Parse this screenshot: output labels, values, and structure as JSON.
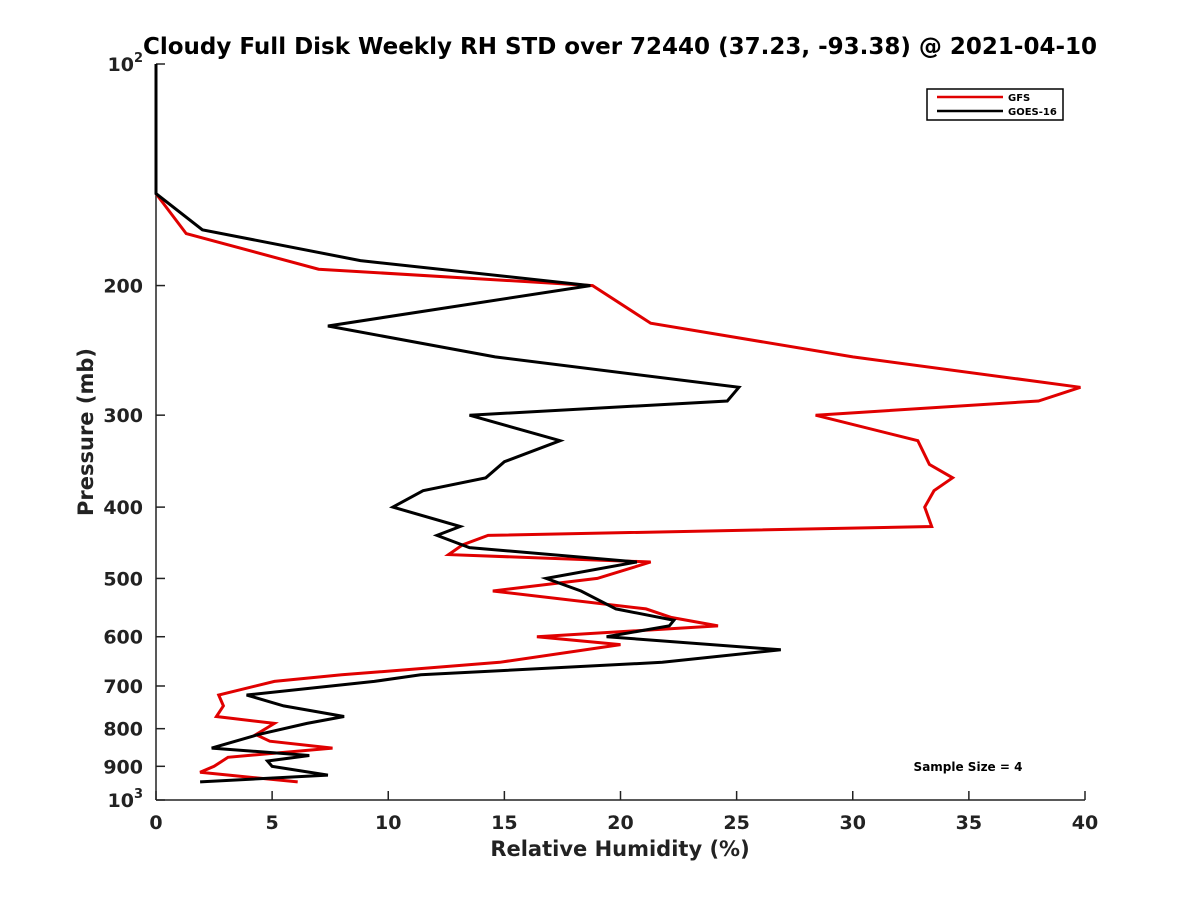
{
  "chart_data": {
    "type": "line",
    "title": "Cloudy Full Disk Weekly RH STD over 72440 (37.23, -93.38) @ 2021-04-10",
    "xlabel": "Relative Humidity (%)",
    "ylabel": "Pressure (mb)",
    "xlim": [
      0,
      40
    ],
    "ylim": [
      100,
      1000
    ],
    "y_scale": "log",
    "y_reversed": true,
    "grid": false,
    "legend_position": "top-right",
    "x_ticks": [
      {
        "value": 0,
        "label": "0"
      },
      {
        "value": 5,
        "label": "5"
      },
      {
        "value": 10,
        "label": "10"
      },
      {
        "value": 15,
        "label": "15"
      },
      {
        "value": 20,
        "label": "20"
      },
      {
        "value": 25,
        "label": "25"
      },
      {
        "value": 30,
        "label": "30"
      },
      {
        "value": 35,
        "label": "35"
      },
      {
        "value": 40,
        "label": "40"
      }
    ],
    "y_ticks": [
      {
        "value": 100,
        "base": "10",
        "exp": "2",
        "label": ""
      },
      {
        "value": 200,
        "label": "200"
      },
      {
        "value": 300,
        "label": "300"
      },
      {
        "value": 400,
        "label": "400"
      },
      {
        "value": 500,
        "label": "500"
      },
      {
        "value": 600,
        "label": "600"
      },
      {
        "value": 700,
        "label": "700"
      },
      {
        "value": 800,
        "label": "800"
      },
      {
        "value": 900,
        "label": "900"
      },
      {
        "value": 1000,
        "base": "10",
        "exp": "3",
        "label": ""
      }
    ],
    "annotation": "Sample Size = 4",
    "series": [
      {
        "name": "GFS",
        "color": "#e00000",
        "points": [
          [
            0,
            100
          ],
          [
            0,
            125
          ],
          [
            0,
            150
          ],
          [
            1.3,
            170
          ],
          [
            7,
            190
          ],
          [
            18.8,
            200
          ],
          [
            21.3,
            225
          ],
          [
            30,
            250
          ],
          [
            39.8,
            275
          ],
          [
            38,
            287
          ],
          [
            28.4,
            300
          ],
          [
            32.8,
            325
          ],
          [
            33.3,
            350
          ],
          [
            34.3,
            365
          ],
          [
            33.5,
            380
          ],
          [
            33.1,
            400
          ],
          [
            33.4,
            425
          ],
          [
            14.3,
            437
          ],
          [
            13.2,
            450
          ],
          [
            12.6,
            464
          ],
          [
            21.3,
            475
          ],
          [
            19,
            500
          ],
          [
            14.5,
            520
          ],
          [
            21.1,
            550
          ],
          [
            22.2,
            565
          ],
          [
            24.2,
            580
          ],
          [
            16.4,
            600
          ],
          [
            20,
            615
          ],
          [
            14.8,
            650
          ],
          [
            8,
            676
          ],
          [
            5.1,
            690
          ],
          [
            2.7,
            720
          ],
          [
            2.9,
            745
          ],
          [
            2.6,
            770
          ],
          [
            5.1,
            787
          ],
          [
            4.3,
            815
          ],
          [
            4.9,
            832
          ],
          [
            7.6,
            850
          ],
          [
            3.1,
            875
          ],
          [
            2.5,
            900
          ],
          [
            1.9,
            917
          ],
          [
            6.1,
            945
          ]
        ]
      },
      {
        "name": "GOES-16",
        "color": "#000000",
        "points": [
          [
            0,
            100
          ],
          [
            0,
            125
          ],
          [
            0,
            150
          ],
          [
            2,
            168
          ],
          [
            8.8,
            185
          ],
          [
            18.7,
            200
          ],
          [
            7.4,
            227
          ],
          [
            14.6,
            250
          ],
          [
            25.1,
            275
          ],
          [
            24.6,
            287
          ],
          [
            13.5,
            300
          ],
          [
            17.4,
            325
          ],
          [
            15,
            347
          ],
          [
            14.2,
            365
          ],
          [
            11.5,
            380
          ],
          [
            10.2,
            400
          ],
          [
            13.1,
            425
          ],
          [
            12.1,
            437
          ],
          [
            13.5,
            454
          ],
          [
            20.7,
            475
          ],
          [
            16.8,
            500
          ],
          [
            18.3,
            520
          ],
          [
            19.8,
            550
          ],
          [
            22.3,
            570
          ],
          [
            22.1,
            580
          ],
          [
            19.4,
            600
          ],
          [
            26.9,
            625
          ],
          [
            21.8,
            650
          ],
          [
            11.4,
            676
          ],
          [
            9.4,
            690
          ],
          [
            3.9,
            720
          ],
          [
            5.5,
            745
          ],
          [
            8.1,
            770
          ],
          [
            6.5,
            787
          ],
          [
            4.4,
            815
          ],
          [
            2.4,
            850
          ],
          [
            6.6,
            870
          ],
          [
            4.8,
            885
          ],
          [
            5,
            900
          ],
          [
            7.4,
            925
          ],
          [
            1.9,
            945
          ]
        ]
      }
    ]
  }
}
